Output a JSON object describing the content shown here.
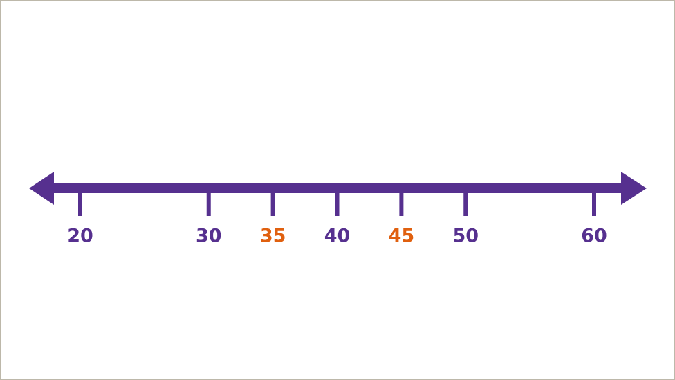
{
  "number_line": {
    "color": "#56308f",
    "highlight_color": "#e0600f",
    "ticks": [
      {
        "value": 20,
        "highlight": false
      },
      {
        "value": 30,
        "highlight": false
      },
      {
        "value": 35,
        "highlight": true
      },
      {
        "value": 40,
        "highlight": false
      },
      {
        "value": 45,
        "highlight": true
      },
      {
        "value": 50,
        "highlight": false
      },
      {
        "value": 60,
        "highlight": false
      }
    ]
  }
}
